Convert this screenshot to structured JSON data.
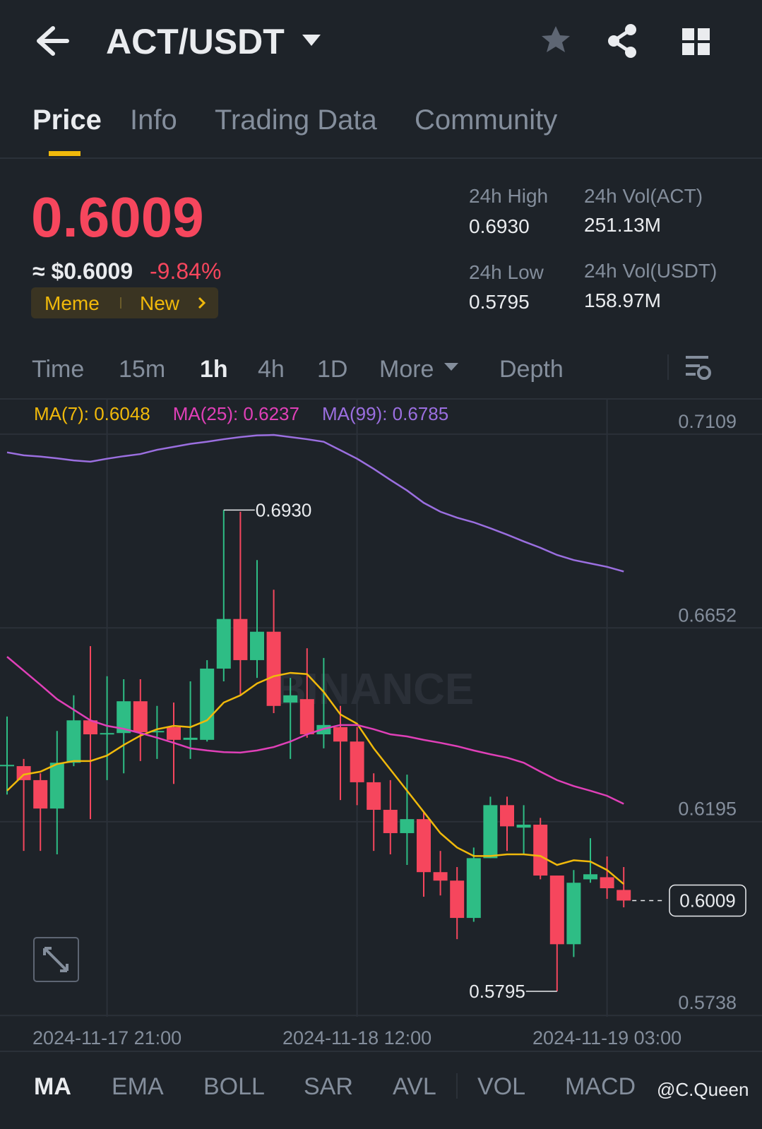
{
  "header": {
    "title": "ACT/USDT",
    "tabs": [
      "Price",
      "Info",
      "Trading Data",
      "Community"
    ]
  },
  "ticker": {
    "price": "0.6009",
    "usd": "≈ $0.6009",
    "change": "-9.84%",
    "tags": [
      "Meme",
      "New"
    ],
    "stats": [
      {
        "label": "24h High",
        "value": "0.6930"
      },
      {
        "label": "24h Vol(ACT)",
        "value": "251.13M"
      },
      {
        "label": "24h Low",
        "value": "0.5795"
      },
      {
        "label": "24h Vol(USDT)",
        "value": "158.97M"
      }
    ]
  },
  "intervals": [
    "Time",
    "15m",
    "1h",
    "4h",
    "1D",
    "More",
    "Depth"
  ],
  "indicators": [
    "MA",
    "EMA",
    "BOLL",
    "SAR",
    "AVL",
    "VOL",
    "MACD"
  ],
  "watermark": "BINANCE",
  "credit": "@C.Queen",
  "chart_data": {
    "type": "candlestick",
    "categories": [
      null,
      null,
      null,
      null,
      null,
      null,
      "2024-11-17 21:00",
      null,
      null,
      null,
      null,
      null,
      null,
      null,
      null,
      null,
      null,
      null,
      null,
      null,
      null,
      "2024-11-18 12:00",
      null,
      null,
      null,
      null,
      null,
      null,
      null,
      null,
      null,
      null,
      null,
      null,
      null,
      null,
      "2024-11-19 03:00",
      null
    ],
    "open": [
      0.6326,
      0.6326,
      0.6293,
      0.6226,
      0.6334,
      0.6434,
      0.6401,
      0.6404,
      0.6479,
      0.6406,
      0.6418,
      0.6388,
      0.6388,
      0.6556,
      0.6673,
      0.6576,
      0.6643,
      0.6476,
      0.6484,
      0.6401,
      0.6418,
      0.6384,
      0.6288,
      0.6223,
      0.6168,
      0.6201,
      0.6076,
      0.6056,
      0.5968,
      0.6109,
      0.6234,
      0.6181,
      0.6188,
      0.6068,
      0.5906,
      0.6059,
      0.6064,
      0.6034
    ],
    "high": [
      0.6443,
      0.6343,
      0.6309,
      0.6409,
      0.6493,
      0.6609,
      0.6538,
      0.6531,
      0.6531,
      0.6468,
      0.6476,
      0.6526,
      0.6576,
      0.693,
      0.6926,
      0.6812,
      0.6742,
      0.6534,
      0.6604,
      0.6581,
      0.6468,
      0.6418,
      0.6309,
      0.6293,
      0.6306,
      0.6218,
      0.6126,
      0.6088,
      0.6134,
      0.6254,
      0.6254,
      0.6234,
      0.6204,
      0.6068,
      0.6081,
      0.6156,
      0.6113,
      0.6088
    ],
    "low": [
      0.6259,
      0.6126,
      0.6126,
      0.6118,
      0.6326,
      0.6201,
      0.6293,
      0.6309,
      0.6338,
      0.6343,
      0.6284,
      0.6343,
      0.6384,
      0.6526,
      0.6493,
      0.6534,
      0.6451,
      0.6343,
      0.6393,
      0.6368,
      0.6246,
      0.6234,
      0.6126,
      0.6118,
      0.6093,
      0.6018,
      0.6021,
      0.5918,
      0.5959,
      0.6109,
      0.6126,
      0.6118,
      0.6059,
      0.5795,
      0.5876,
      0.6051,
      0.6013,
      0.5993
    ],
    "close": [
      0.6329,
      0.6293,
      0.6226,
      0.6334,
      0.6434,
      0.6401,
      0.6404,
      0.6479,
      0.6406,
      0.6409,
      0.6388,
      0.6393,
      0.6556,
      0.6673,
      0.6576,
      0.6643,
      0.6468,
      0.6493,
      0.6401,
      0.6423,
      0.6384,
      0.6288,
      0.6223,
      0.6168,
      0.6201,
      0.6076,
      0.6056,
      0.5968,
      0.6109,
      0.6234,
      0.6184,
      0.6188,
      0.6068,
      0.5906,
      0.6051,
      0.6071,
      0.6038,
      0.6009
    ],
    "up_color": "#2ebd85",
    "down_color": "#f6465d",
    "series": [
      {
        "name": "MA(7): 0.6048",
        "color": "#f0b90b",
        "values": [
          0.6268,
          0.6306,
          0.6313,
          0.6331,
          0.6338,
          0.6338,
          0.6351,
          0.6376,
          0.6398,
          0.6413,
          0.6421,
          0.6418,
          0.6434,
          0.6476,
          0.6493,
          0.6521,
          0.6538,
          0.6546,
          0.6543,
          0.6501,
          0.6448,
          0.6426,
          0.6368,
          0.6318,
          0.6268,
          0.6218,
          0.6168,
          0.6134,
          0.6114,
          0.6114,
          0.6118,
          0.6118,
          0.6114,
          0.6093,
          0.6104,
          0.6101,
          0.6081,
          0.6048
        ]
      },
      {
        "name": "MA(25): 0.6237",
        "color": "#e040b8",
        "values": [
          0.6584,
          0.6551,
          0.6518,
          0.6484,
          0.6459,
          0.6434,
          0.6421,
          0.6414,
          0.6404,
          0.6393,
          0.6381,
          0.6368,
          0.6363,
          0.6359,
          0.6358,
          0.6363,
          0.6371,
          0.6384,
          0.6401,
          0.6414,
          0.6423,
          0.6423,
          0.6413,
          0.6401,
          0.6396,
          0.6388,
          0.6381,
          0.6373,
          0.6363,
          0.6354,
          0.6346,
          0.6334,
          0.6313,
          0.6293,
          0.6279,
          0.6268,
          0.6256,
          0.6237
        ]
      },
      {
        "name": "MA(99): 0.6785",
        "color": "#9b6fe0",
        "values": [
          0.7066,
          0.7059,
          0.7056,
          0.7052,
          0.7047,
          0.7044,
          0.7051,
          0.7057,
          0.7062,
          0.7072,
          0.7079,
          0.7086,
          0.7091,
          0.7097,
          0.7102,
          0.7106,
          0.7107,
          0.7102,
          0.7097,
          0.7091,
          0.7071,
          0.7051,
          0.7027,
          0.7001,
          0.6976,
          0.6947,
          0.6926,
          0.6912,
          0.6901,
          0.6887,
          0.6872,
          0.6856,
          0.6841,
          0.6824,
          0.6812,
          0.6804,
          0.6796,
          0.6785
        ]
      }
    ],
    "ylim": [
      0.5735,
      0.7192
    ],
    "yticks": [
      0.7109,
      0.6652,
      0.6195,
      0.5738
    ],
    "grid": true,
    "annotations": [
      "0.6930",
      "0.5795"
    ],
    "price_tag": "0.6009"
  }
}
